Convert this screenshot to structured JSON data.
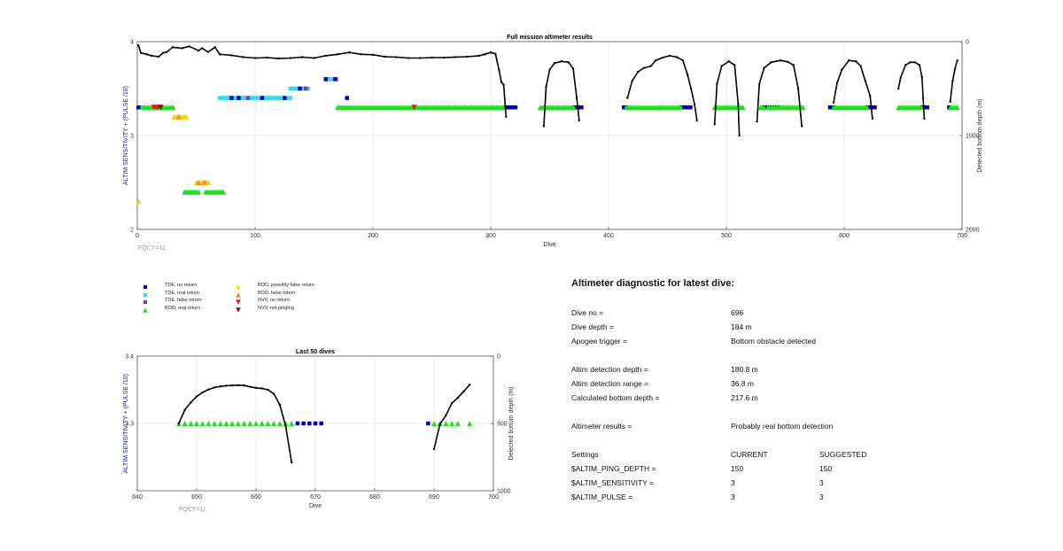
{
  "chart_data": [
    {
      "type": "scatter",
      "title": "Full mission altimeter results",
      "xlabel": "Dive",
      "ylabel": "ALTIM SENSITIVITY + (PULSE /10)",
      "y2label": "Detected bottom depth (m)",
      "xlim": [
        0,
        700
      ],
      "ylim": [
        2,
        4
      ],
      "y2lim": [
        2000,
        0
      ],
      "xticks": [
        "0",
        "100",
        "200",
        "300",
        "400",
        "500",
        "600",
        "700"
      ],
      "yticks": [
        "2",
        "3",
        "4"
      ],
      "y2ticks": [
        "0",
        "1000",
        "2000"
      ],
      "note": "FQCY=11",
      "grid": true,
      "legend_position": "below",
      "series": [
        {
          "name": "TDE, no return",
          "color": "#0000b4",
          "marker": "square",
          "runs": [
            [
              312,
              321,
              3.3
            ],
            [
              371,
              377,
              3.3
            ],
            [
              413,
              415,
              3.3
            ],
            [
              462,
              470,
              3.3
            ],
            [
              532,
              544,
              3.3
            ],
            [
              588,
              591,
              3.3
            ],
            [
              620,
              627,
              3.3
            ],
            [
              666,
              671,
              3.3
            ],
            [
              689,
              689,
              3.3
            ]
          ],
          "points": [
            [
              1,
              3.3
            ],
            [
              80,
              3.4
            ],
            [
              86,
              3.4
            ],
            [
              106,
              3.4
            ],
            [
              125,
              3.4
            ],
            [
              138,
              3.5
            ],
            [
              160,
              3.6
            ],
            [
              168,
              3.6
            ],
            [
              178,
              3.4
            ]
          ]
        },
        {
          "name": "TDE, real return",
          "color": "#3fd9e6",
          "marker": "square",
          "runs": [
            [
              2,
              5,
              3.3
            ],
            [
              70,
              130,
              3.4
            ],
            [
              130,
              145,
              3.5
            ],
            [
              160,
              170,
              3.6
            ]
          ]
        },
        {
          "name": "TDE, false return",
          "color": "#7a3ab8",
          "marker": "square",
          "points": [
            [
              94,
              3.4
            ],
            [
              143,
              3.5
            ]
          ]
        },
        {
          "name": "BOD, real return",
          "color": "#22dd22",
          "marker": "triangle",
          "runs": [
            [
              5,
              31,
              3.3
            ],
            [
              170,
              312,
              3.3
            ],
            [
              342,
              371,
              3.3
            ],
            [
              415,
              462,
              3.3
            ],
            [
              490,
              514,
              3.3
            ],
            [
              529,
              532,
              3.3
            ],
            [
              535,
              565,
              3.3
            ],
            [
              591,
              620,
              3.3
            ],
            [
              646,
              666,
              3.3
            ],
            [
              690,
              696,
              3.3
            ],
            [
              40,
              52,
              2.4
            ],
            [
              58,
              73,
              2.4
            ]
          ]
        },
        {
          "name": "BOD, possibly false return",
          "color": "#f5d020",
          "marker": "triangle",
          "runs": [
            [
              31,
              42,
              3.2
            ],
            [
              50,
              61,
              2.5
            ]
          ],
          "points": [
            [
              1,
              2.3
            ]
          ]
        },
        {
          "name": "BOD, false return",
          "color": "#f58a20",
          "marker": "triangle",
          "points": [
            [
              52,
              2.5
            ],
            [
              57,
              2.5
            ],
            [
              35,
              3.2
            ]
          ]
        },
        {
          "name": "NVV, no return",
          "color": "#dd1a1a",
          "marker": "triangle-down",
          "points": [
            [
              14,
              3.3
            ],
            [
              16,
              3.3
            ],
            [
              18,
              3.3
            ],
            [
              235,
              3.3
            ]
          ]
        },
        {
          "name": "NVV, not pinging",
          "color": "#7a1010",
          "marker": "triangle-down",
          "points": [
            [
              20,
              3.3
            ]
          ]
        }
      ],
      "bottom_depth": [
        [
          [
            1,
            40
          ],
          [
            3,
            120
          ],
          [
            8,
            135
          ],
          [
            12,
            150
          ],
          [
            18,
            160
          ],
          [
            22,
            120
          ],
          [
            25,
            110
          ],
          [
            30,
            60
          ],
          [
            38,
            70
          ],
          [
            44,
            50
          ],
          [
            52,
            95
          ],
          [
            55,
            70
          ],
          [
            60,
            110
          ],
          [
            66,
            60
          ],
          [
            70,
            135
          ],
          [
            80,
            145
          ],
          [
            90,
            165
          ],
          [
            100,
            175
          ],
          [
            110,
            170
          ],
          [
            120,
            180
          ],
          [
            130,
            175
          ],
          [
            140,
            165
          ],
          [
            150,
            175
          ],
          [
            160,
            150
          ],
          [
            170,
            135
          ],
          [
            180,
            115
          ],
          [
            190,
            135
          ],
          [
            200,
            140
          ],
          [
            210,
            160
          ],
          [
            220,
            165
          ],
          [
            230,
            175
          ],
          [
            240,
            175
          ],
          [
            250,
            170
          ],
          [
            260,
            170
          ],
          [
            270,
            165
          ],
          [
            280,
            160
          ],
          [
            290,
            150
          ],
          [
            295,
            135
          ],
          [
            300,
            115
          ],
          [
            304,
            130
          ],
          [
            307,
            300
          ],
          [
            309,
            430
          ],
          [
            311,
            460
          ],
          [
            313,
            800
          ]
        ],
        [
          [
            345,
            900
          ],
          [
            347,
            480
          ],
          [
            350,
            300
          ],
          [
            354,
            230
          ],
          [
            360,
            210
          ],
          [
            366,
            220
          ],
          [
            370,
            290
          ],
          [
            373,
            600
          ],
          [
            375,
            840
          ]
        ],
        [
          [
            416,
            600
          ],
          [
            420,
            420
          ],
          [
            425,
            320
          ],
          [
            430,
            280
          ],
          [
            436,
            260
          ],
          [
            440,
            200
          ],
          [
            446,
            170
          ],
          [
            452,
            150
          ],
          [
            458,
            165
          ],
          [
            463,
            200
          ],
          [
            467,
            350
          ],
          [
            470,
            500
          ],
          [
            473,
            670
          ],
          [
            475,
            840
          ]
        ],
        [
          [
            490,
            880
          ],
          [
            492,
            450
          ],
          [
            496,
            260
          ],
          [
            502,
            210
          ],
          [
            507,
            250
          ],
          [
            510,
            660
          ],
          [
            511,
            1000
          ]
        ],
        [
          [
            526,
            850
          ],
          [
            528,
            450
          ],
          [
            532,
            280
          ],
          [
            538,
            220
          ],
          [
            546,
            200
          ],
          [
            552,
            215
          ],
          [
            557,
            250
          ],
          [
            561,
            500
          ],
          [
            564,
            900
          ]
        ],
        [
          [
            591,
            650
          ],
          [
            594,
            440
          ],
          [
            598,
            300
          ],
          [
            604,
            200
          ],
          [
            610,
            210
          ],
          [
            614,
            260
          ],
          [
            618,
            420
          ],
          [
            622,
            580
          ],
          [
            624,
            820
          ]
        ],
        [
          [
            646,
            500
          ],
          [
            648,
            380
          ],
          [
            652,
            250
          ],
          [
            656,
            220
          ],
          [
            660,
            220
          ],
          [
            664,
            250
          ],
          [
            666,
            380
          ],
          [
            667,
            600
          ],
          [
            668,
            820
          ]
        ],
        [
          [
            690,
            640
          ],
          [
            692,
            420
          ],
          [
            694,
            290
          ],
          [
            696,
            200
          ]
        ]
      ]
    },
    {
      "type": "scatter",
      "title": "Last 50 dives",
      "xlabel": "Dive",
      "ylabel": "ALTIM SENSITIVITY + (PULSE /10)",
      "y2label": "Detected bottom depth (m)",
      "xlim": [
        640,
        700
      ],
      "ylim": [
        3.2,
        3.4
      ],
      "y2lim": [
        1000,
        0
      ],
      "xticks": [
        "640",
        "650",
        "660",
        "670",
        "680",
        "690",
        "700"
      ],
      "yticks": [
        "3.3",
        "3.4"
      ],
      "y2ticks": [
        "0",
        "500",
        "1000"
      ],
      "note": "FQCY=11",
      "grid": true,
      "bod_real_return": [
        647,
        648,
        649,
        650,
        651,
        652,
        653,
        654,
        655,
        656,
        657,
        658,
        659,
        660,
        661,
        662,
        663,
        664,
        665,
        666,
        690,
        691,
        692,
        693,
        694,
        696
      ],
      "tde_no_return": [
        667,
        668,
        669,
        670,
        671,
        689
      ],
      "bottom_depth": [
        [
          [
            647,
            500
          ],
          [
            648,
            400
          ],
          [
            649,
            345
          ],
          [
            650,
            300
          ],
          [
            651,
            270
          ],
          [
            652,
            248
          ],
          [
            653,
            233
          ],
          [
            654,
            225
          ],
          [
            655,
            220
          ],
          [
            656,
            218
          ],
          [
            657,
            216
          ],
          [
            658,
            218
          ],
          [
            659,
            228
          ],
          [
            660,
            236
          ],
          [
            661,
            240
          ],
          [
            662,
            250
          ],
          [
            663,
            280
          ],
          [
            664,
            360
          ],
          [
            665,
            520
          ],
          [
            666,
            790
          ]
        ],
        [
          [
            690,
            690
          ],
          [
            691,
            505
          ],
          [
            692,
            440
          ],
          [
            693,
            350
          ],
          [
            694,
            310
          ],
          [
            695,
            262
          ],
          [
            696,
            213
          ]
        ]
      ]
    }
  ],
  "diagnostic": {
    "title": "Altimeter diagnostic for latest dive:",
    "rows": [
      {
        "label": "Dive no =",
        "value": "696"
      },
      {
        "label": "Dive depth =",
        "value": "184 m"
      },
      {
        "label": "Apogee trigger =",
        "value": "Bottom obstacle detected"
      },
      {
        "label": "Altim detection depth =",
        "value": "180.8 m"
      },
      {
        "label": "Altim detection range =",
        "value": "36.8 m"
      },
      {
        "label": "Calculated bottom depth =",
        "value": "217.6 m"
      },
      {
        "label": "Altimeter results =",
        "value": "Probably real bottom detection"
      }
    ],
    "settings": {
      "header": {
        "label": "Settings",
        "current": "CURRENT",
        "suggested": "SUGGESTED"
      },
      "rows": [
        {
          "label": "$ALTIM_PING_DEPTH =",
          "current": "150",
          "suggested": "150"
        },
        {
          "label": "$ALTIM_SENSITIVITY =",
          "current": "3",
          "suggested": "3"
        },
        {
          "label": "$ALTIM_PULSE =",
          "current": "3",
          "suggested": "3"
        }
      ]
    }
  }
}
